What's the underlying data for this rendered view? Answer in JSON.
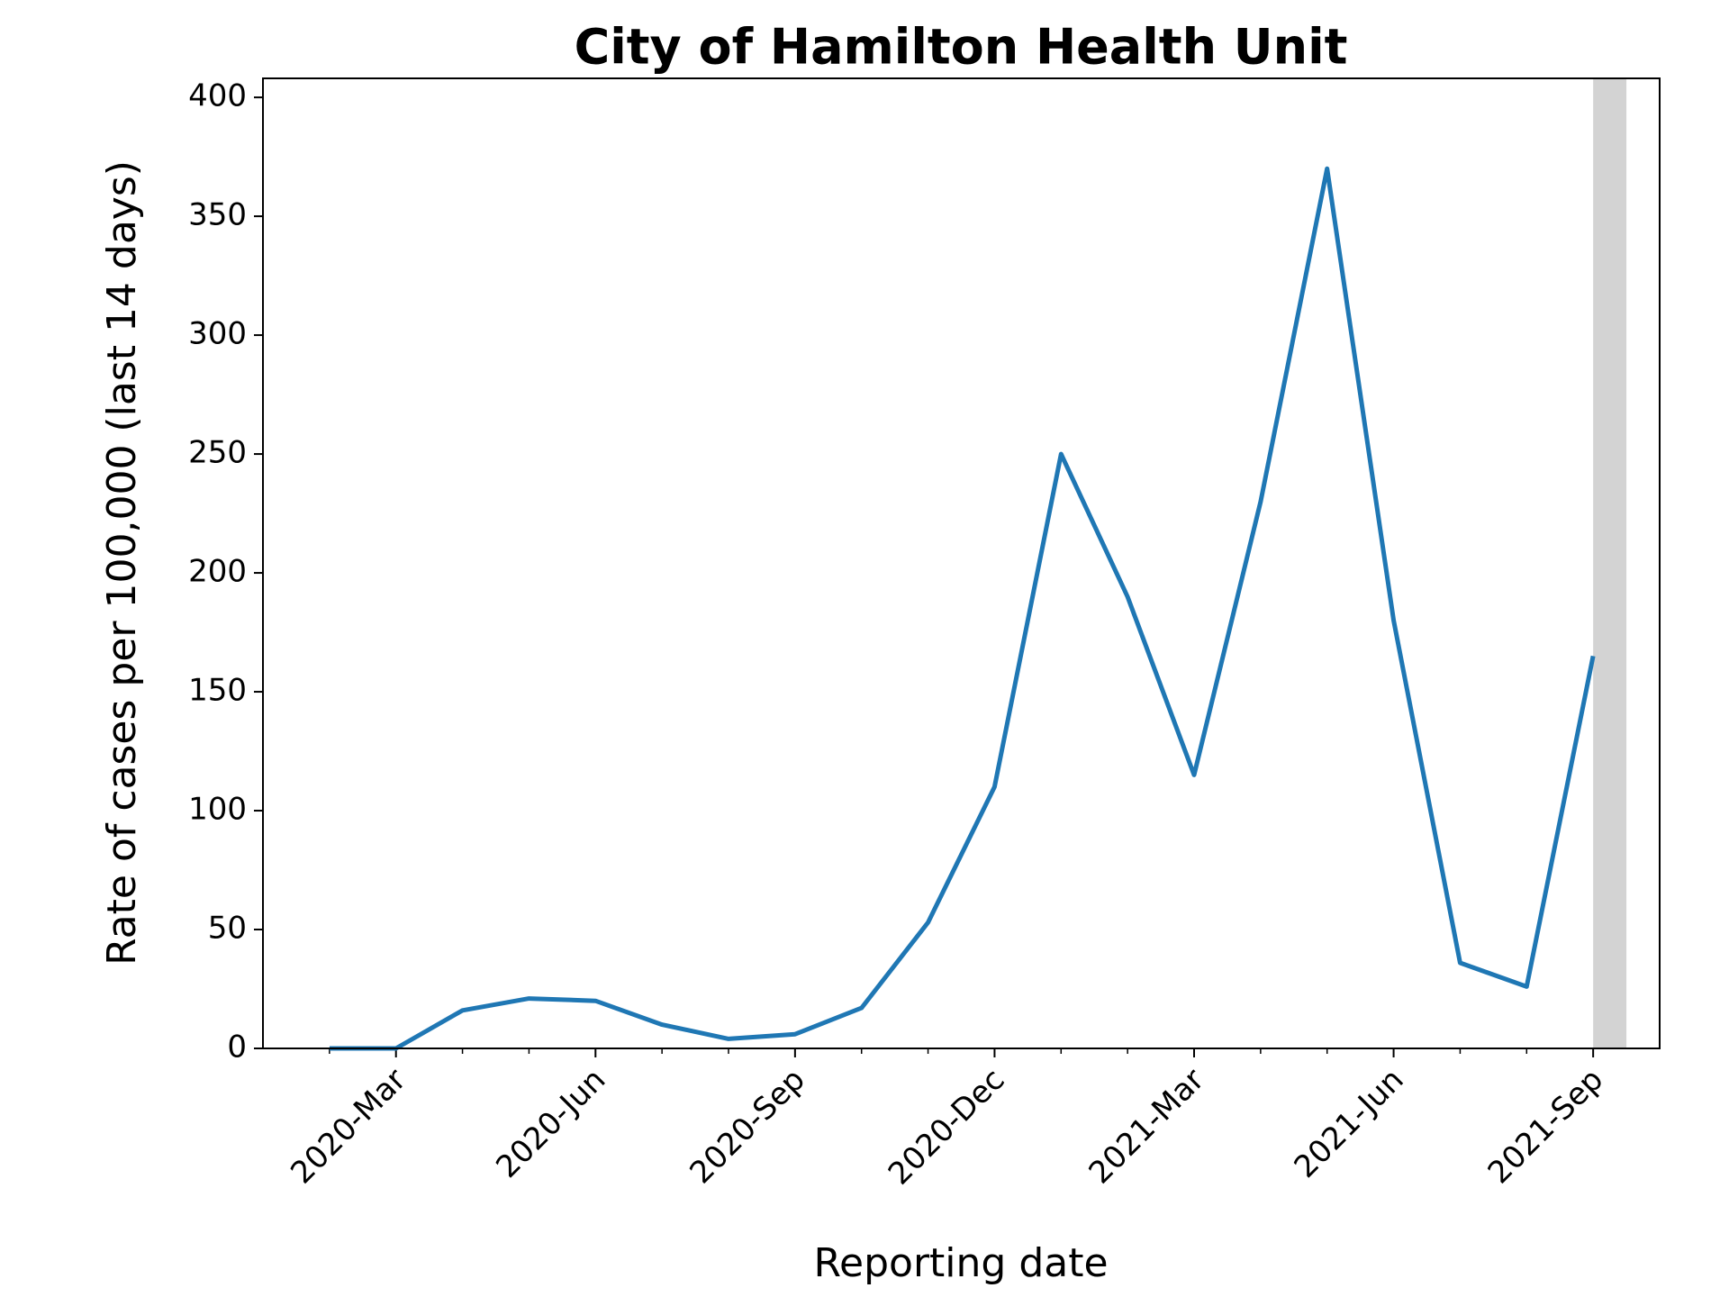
{
  "chart_data": {
    "type": "line",
    "title": "City of Hamilton Health Unit",
    "xlabel": "Reporting date",
    "ylabel": "Rate of cases per 100,000 (last 14 days)",
    "x": [
      "2020-02",
      "2020-03",
      "2020-04",
      "2020-05",
      "2020-06",
      "2020-07",
      "2020-08",
      "2020-09",
      "2020-10",
      "2020-11",
      "2020-12",
      "2021-01",
      "2021-02",
      "2021-03",
      "2021-04",
      "2021-05",
      "2021-06",
      "2021-07",
      "2021-08",
      "2021-09"
    ],
    "series": [
      {
        "name": "Rate of cases",
        "color": "#1f77b4",
        "values": [
          0,
          0,
          16,
          21,
          20,
          10,
          4,
          6,
          17,
          53,
          110,
          250,
          190,
          115,
          230,
          370,
          180,
          36,
          26,
          165
        ]
      }
    ],
    "shaded_from": "2021-09",
    "shade_color": "#d3d3d3",
    "xlim": [
      "2020-01",
      "2021-10"
    ],
    "xticks": [
      {
        "value": "2020-03",
        "label": "2020-Mar"
      },
      {
        "value": "2020-06",
        "label": "2020-Jun"
      },
      {
        "value": "2020-09",
        "label": "2020-Sep"
      },
      {
        "value": "2020-12",
        "label": "2020-Dec"
      },
      {
        "value": "2021-03",
        "label": "2021-Mar"
      },
      {
        "value": "2021-06",
        "label": "2021-Jun"
      },
      {
        "value": "2021-09",
        "label": "2021-Sep"
      }
    ],
    "xminorticks": [
      "2020-02",
      "2020-04",
      "2020-05",
      "2020-07",
      "2020-08",
      "2020-10",
      "2020-11",
      "2021-01",
      "2021-02",
      "2021-04",
      "2021-05",
      "2021-07",
      "2021-08"
    ],
    "ylim": [
      0,
      408
    ],
    "yticks": [
      0,
      50,
      100,
      150,
      200,
      250,
      300,
      350,
      400
    ],
    "grid": false
  }
}
